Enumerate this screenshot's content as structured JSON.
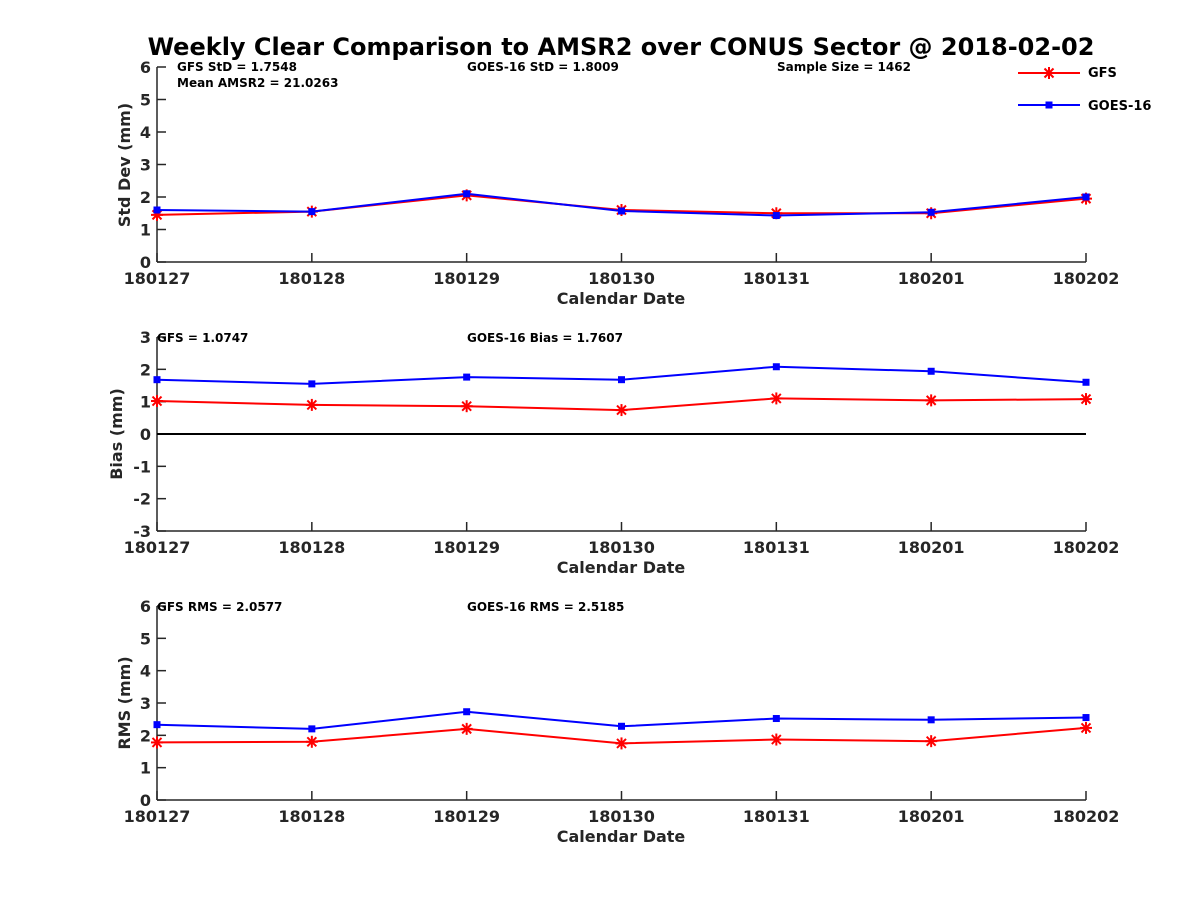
{
  "chart_data": {
    "title": "Weekly Clear Comparison to AMSR2 over CONUS Sector @ 2018-02-02",
    "categories": [
      "180127",
      "180128",
      "180129",
      "180130",
      "180131",
      "180201",
      "180202"
    ],
    "legend": {
      "placement": "top-right",
      "entries": [
        {
          "name": "GFS",
          "color": "#ff0000",
          "marker": "star"
        },
        {
          "name": "GOES-16",
          "color": "#0000ff",
          "marker": "square"
        }
      ]
    },
    "panels": [
      {
        "type": "line",
        "xlabel": "Calendar Date",
        "ylabel": "Std Dev (mm)",
        "ylim": [
          0,
          6
        ],
        "yticks": [
          "0",
          "1",
          "2",
          "3",
          "4",
          "5",
          "6"
        ],
        "zero_line": false,
        "annotations": [
          "GFS StD = 1.7548",
          "Mean AMSR2 = 21.0263",
          "GOES-16 StD = 1.8009",
          "Sample Size = 1462"
        ],
        "series": [
          {
            "name": "GFS",
            "color": "#ff0000",
            "marker": "star",
            "values": [
              1.45,
              1.55,
              2.05,
              1.6,
              1.5,
              1.5,
              1.95
            ]
          },
          {
            "name": "GOES-16",
            "color": "#0000ff",
            "marker": "square",
            "values": [
              1.6,
              1.55,
              2.1,
              1.57,
              1.43,
              1.53,
              2.0
            ]
          }
        ]
      },
      {
        "type": "line",
        "xlabel": "Calendar Date",
        "ylabel": "Bias (mm)",
        "ylim": [
          -3,
          3
        ],
        "yticks": [
          "-3",
          "-2",
          "-1",
          "0",
          "1",
          "2",
          "3"
        ],
        "zero_line": true,
        "annotations": [
          "GFS = 1.0747",
          "GOES-16 Bias  = 1.7607"
        ],
        "series": [
          {
            "name": "GFS",
            "color": "#ff0000",
            "marker": "star",
            "values": [
              1.02,
              0.9,
              0.86,
              0.74,
              1.1,
              1.04,
              1.08
            ]
          },
          {
            "name": "GOES-16",
            "color": "#0000ff",
            "marker": "square",
            "values": [
              1.68,
              1.55,
              1.76,
              1.68,
              2.08,
              1.94,
              1.6
            ]
          }
        ]
      },
      {
        "type": "line",
        "xlabel": "Calendar Date",
        "ylabel": "RMS (mm)",
        "ylim": [
          0,
          6
        ],
        "yticks": [
          "0",
          "1",
          "2",
          "3",
          "4",
          "5",
          "6"
        ],
        "zero_line": false,
        "annotations": [
          "GFS RMS = 2.0577",
          "GOES-16 RMS = 2.5185"
        ],
        "series": [
          {
            "name": "GFS",
            "color": "#ff0000",
            "marker": "star",
            "values": [
              1.78,
              1.8,
              2.2,
              1.75,
              1.87,
              1.82,
              2.23
            ]
          },
          {
            "name": "GOES-16",
            "color": "#0000ff",
            "marker": "square",
            "values": [
              2.33,
              2.2,
              2.73,
              2.28,
              2.52,
              2.48,
              2.55
            ]
          }
        ]
      }
    ]
  }
}
